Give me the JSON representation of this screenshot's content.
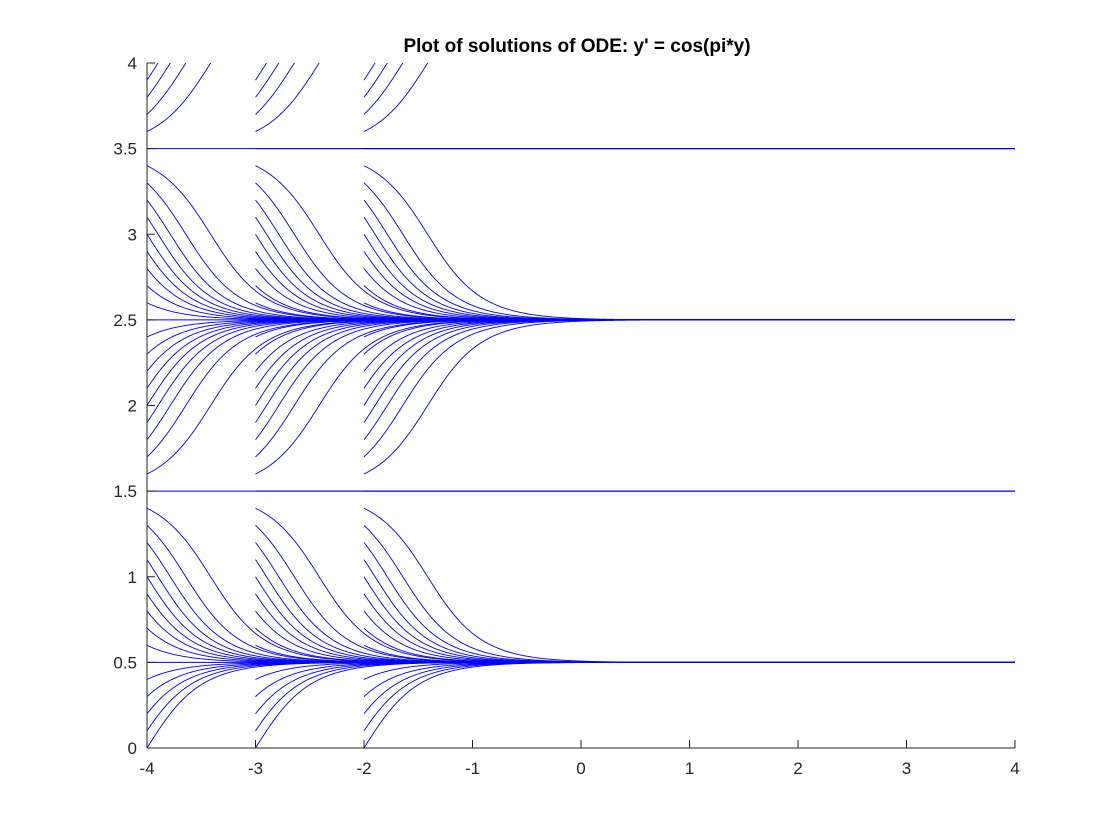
{
  "chart_data": {
    "type": "line",
    "title": "Plot of solutions of ODE: y' = cos(pi*y)",
    "xlabel": "",
    "ylabel": "",
    "xlim": [
      -4,
      4
    ],
    "ylim": [
      0,
      4
    ],
    "x_ticks": [
      -4,
      -3,
      -2,
      -1,
      0,
      1,
      2,
      3,
      4
    ],
    "x_tick_labels": [
      "-4",
      "-3",
      "-2",
      "-1",
      "0",
      "1",
      "2",
      "3",
      "4"
    ],
    "y_ticks": [
      0,
      0.5,
      1,
      1.5,
      2,
      2.5,
      3,
      3.5,
      4
    ],
    "y_tick_labels": [
      "0",
      "0.5",
      "1",
      "1.5",
      "2",
      "2.5",
      "3",
      "3.5",
      "4"
    ],
    "grid": false,
    "legend": "none",
    "line_color": "#0000ff",
    "ode": "y' = cos(pi*y)",
    "start_times": [
      -4,
      -3,
      -2
    ],
    "t_end": 4,
    "initial_values": [
      0,
      0.1,
      0.2,
      0.3,
      0.4,
      0.5,
      0.6,
      0.7,
      0.8,
      0.9,
      1.0,
      1.1,
      1.2,
      1.3,
      1.4,
      1.5,
      1.6,
      1.7,
      1.8,
      1.9,
      2.0,
      2.1,
      2.2,
      2.3,
      2.4,
      2.5,
      2.6,
      2.7,
      2.8,
      2.9,
      3.0,
      3.1,
      3.2,
      3.3,
      3.4,
      3.5,
      3.6,
      3.7,
      3.8,
      3.9,
      4.0
    ],
    "equilibria": [
      0.5,
      1.5,
      2.5,
      3.5
    ]
  }
}
